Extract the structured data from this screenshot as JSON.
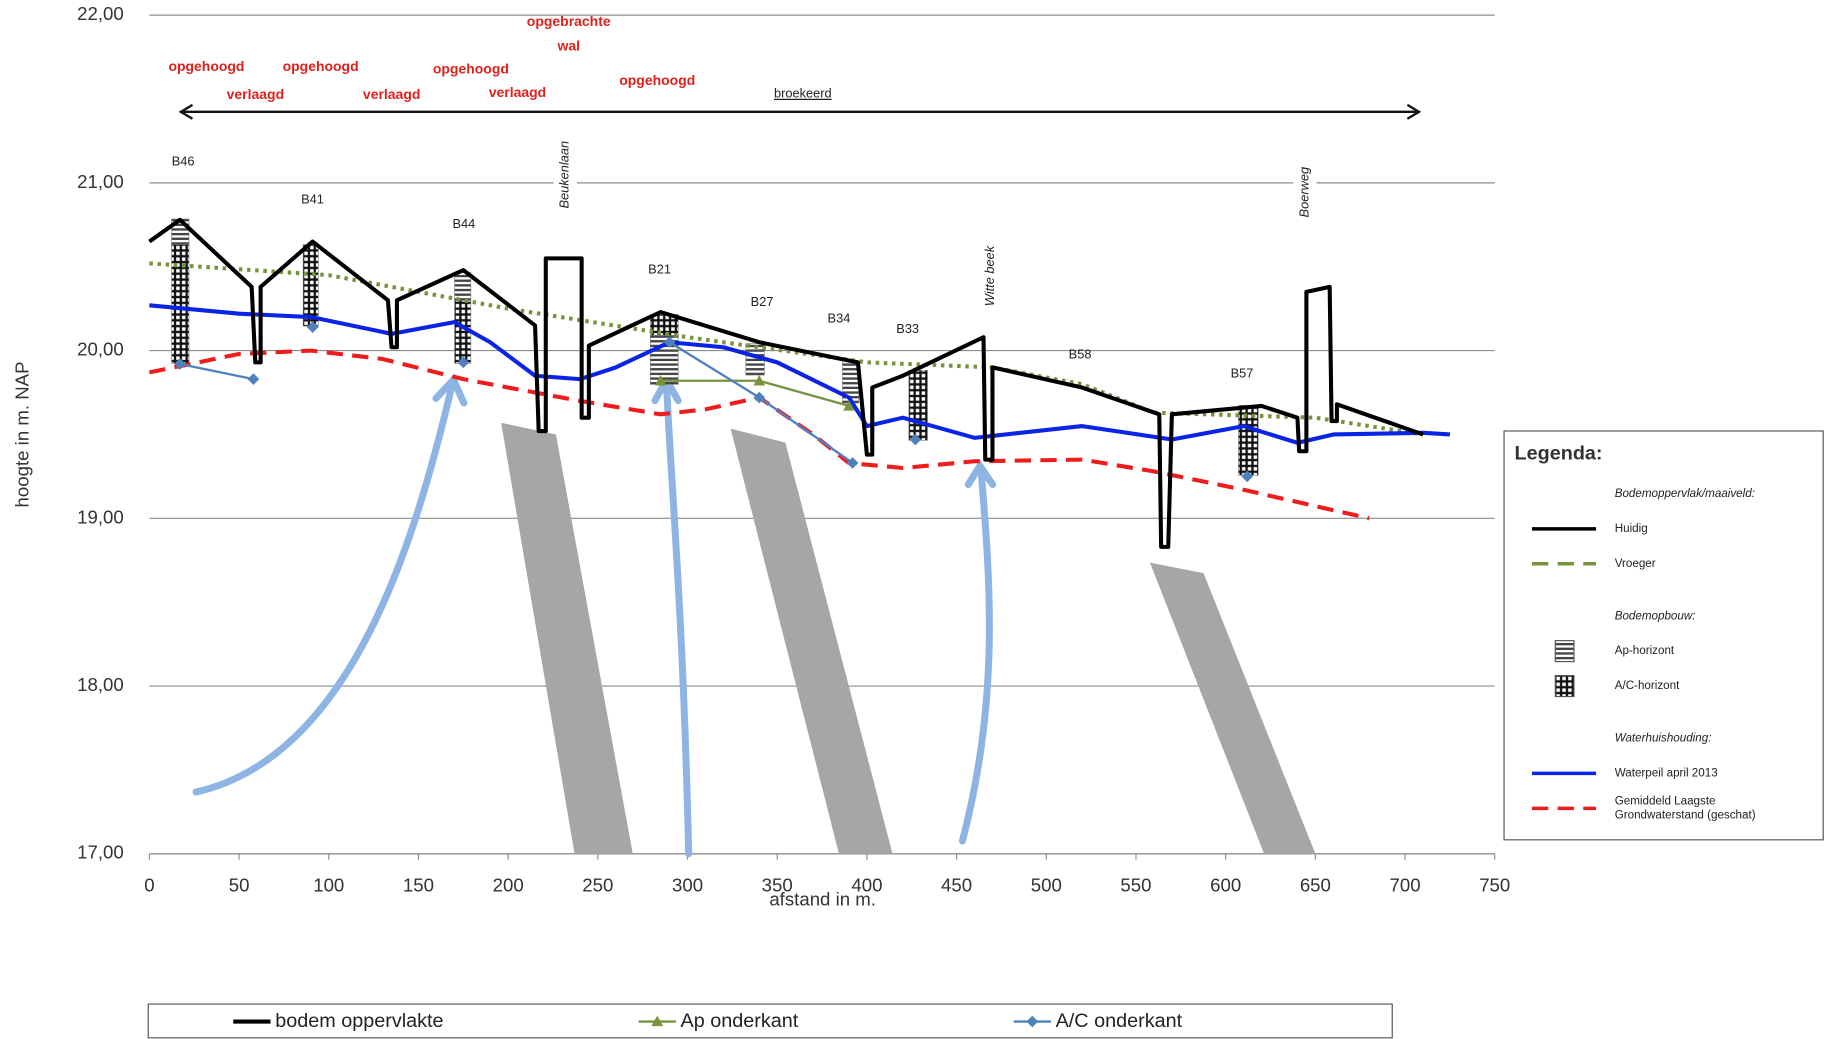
{
  "chart_data": {
    "type": "line",
    "xlabel": "afstand in m.",
    "ylabel": "hoogte in m. NAP",
    "xlim": [
      0,
      750
    ],
    "ylim": [
      17,
      22
    ],
    "xticks": [
      0,
      50,
      100,
      150,
      200,
      250,
      300,
      350,
      400,
      450,
      500,
      550,
      600,
      650,
      700,
      750
    ],
    "yticks": [
      {
        "value": 17,
        "label": "17,00"
      },
      {
        "value": 18,
        "label": "18,00"
      },
      {
        "value": 19,
        "label": "19,00"
      },
      {
        "value": 20,
        "label": "20,00"
      },
      {
        "value": 21,
        "label": "21,00"
      },
      {
        "value": 22,
        "label": "22,00"
      }
    ],
    "grid": true,
    "legend_position": "bottom",
    "series": [
      {
        "name": "bodem oppervlakte",
        "color": "#000000",
        "style": "solid",
        "marker": "none",
        "x": [
          0,
          17,
          57,
          59,
          62,
          62,
          91,
          133,
          135,
          138,
          138,
          175,
          215,
          217,
          221,
          221,
          241,
          241,
          245,
          245,
          285,
          340,
          395,
          400,
          403,
          403,
          420,
          465,
          466,
          470,
          470,
          520,
          563,
          564,
          568,
          570,
          620,
          640,
          641,
          645,
          645,
          658,
          659,
          662,
          662,
          710
        ],
        "values": [
          20.65,
          20.78,
          20.38,
          19.93,
          19.93,
          20.38,
          20.65,
          20.3,
          20.02,
          20.02,
          20.3,
          20.48,
          20.15,
          19.52,
          19.52,
          20.55,
          20.55,
          19.6,
          19.6,
          20.03,
          20.23,
          20.05,
          19.93,
          19.38,
          19.38,
          19.78,
          19.85,
          20.08,
          19.35,
          19.35,
          19.9,
          19.78,
          19.62,
          18.83,
          18.83,
          19.62,
          19.67,
          19.6,
          19.4,
          19.4,
          20.35,
          20.38,
          19.58,
          19.58,
          19.68,
          19.5
        ]
      },
      {
        "name": "Ap onderkant",
        "color": "#77933c",
        "style": "solid",
        "marker": "triangle",
        "x": [
          285,
          340,
          390
        ],
        "values": [
          19.82,
          19.82,
          19.67
        ]
      },
      {
        "name": "A/C onderkant",
        "color": "#4f81bd",
        "style": "solid",
        "marker": "diamond",
        "x": [
          17,
          58,
          null,
          91,
          null,
          175,
          null,
          290,
          340,
          392,
          null,
          427,
          null,
          612
        ],
        "values": [
          19.92,
          19.83,
          null,
          20.14,
          null,
          19.93,
          null,
          20.05,
          19.72,
          19.33,
          null,
          19.47,
          null,
          19.25
        ]
      }
    ],
    "overlays": [
      {
        "color": "#77933c",
        "style": "dotted",
        "x": [
          0,
          100,
          200,
          300,
          400,
          470,
          520,
          560,
          650,
          710
        ],
        "values": [
          20.52,
          20.45,
          20.25,
          20.08,
          19.93,
          19.9,
          19.8,
          19.63,
          19.6,
          19.5
        ]
      },
      {
        "color": "#0a24e6",
        "style": "solid",
        "x": [
          0,
          50,
          90,
          135,
          170,
          190,
          215,
          240,
          260,
          290,
          320,
          350,
          390,
          400,
          420,
          460,
          520,
          570,
          610,
          640,
          660,
          710,
          725
        ],
        "values": [
          20.27,
          20.22,
          20.2,
          20.1,
          20.17,
          20.05,
          19.85,
          19.83,
          19.9,
          20.05,
          20.02,
          19.93,
          19.72,
          19.55,
          19.6,
          19.48,
          19.55,
          19.47,
          19.55,
          19.45,
          19.5,
          19.51,
          19.5
        ]
      },
      {
        "color": "#ee1c1c",
        "style": "dashed",
        "x": [
          0,
          50,
          90,
          130,
          175,
          240,
          285,
          310,
          340,
          370,
          390,
          420,
          460,
          520,
          560,
          610,
          680
        ],
        "values": [
          19.87,
          19.98,
          20.0,
          19.95,
          19.83,
          19.7,
          19.62,
          19.65,
          19.72,
          19.5,
          19.33,
          19.3,
          19.34,
          19.35,
          19.28,
          19.17,
          19.0
        ]
      }
    ],
    "annotations": [
      "opgebrachte",
      "wal",
      "opgehoogd",
      "opgehoogd",
      "verlaagd",
      "verlaagd",
      "opgehoogd",
      "verlaagd",
      "opgehoogd",
      "broekeerd",
      "B46",
      "B41",
      "B44",
      "B21",
      "B27",
      "B34",
      "B33",
      "B58",
      "B57",
      "Beukenlaan",
      "Witte beek",
      "Boerweg"
    ],
    "legend_panel": {
      "title": "Legenda:",
      "groups": [
        {
          "heading": "Bodemoppervlak/maaiveld:",
          "items": [
            {
              "lines": [
                "Huidig"
              ],
              "kind": "line",
              "color": "#000000"
            },
            {
              "lines": [
                "Vroeger"
              ],
              "kind": "dashed",
              "color": "#77933c"
            }
          ]
        },
        {
          "heading": "Bodemopbouw:",
          "items": [
            {
              "lines": [
                "Ap-horizont"
              ],
              "kind": "ap",
              "color": "#555555"
            },
            {
              "lines": [
                "A/C-horizont"
              ],
              "kind": "ac",
              "color": "#555555"
            }
          ]
        },
        {
          "heading": "Waterhuishouding:",
          "items": [
            {
              "lines": [
                "Waterpeil april 2013"
              ],
              "kind": "line",
              "color": "#0a24e6"
            },
            {
              "lines": [
                "Gemiddeld Laagste",
                "Grondwaterstand (geschat)"
              ],
              "kind": "dashed",
              "color": "#ee1c1c"
            }
          ]
        }
      ]
    }
  }
}
